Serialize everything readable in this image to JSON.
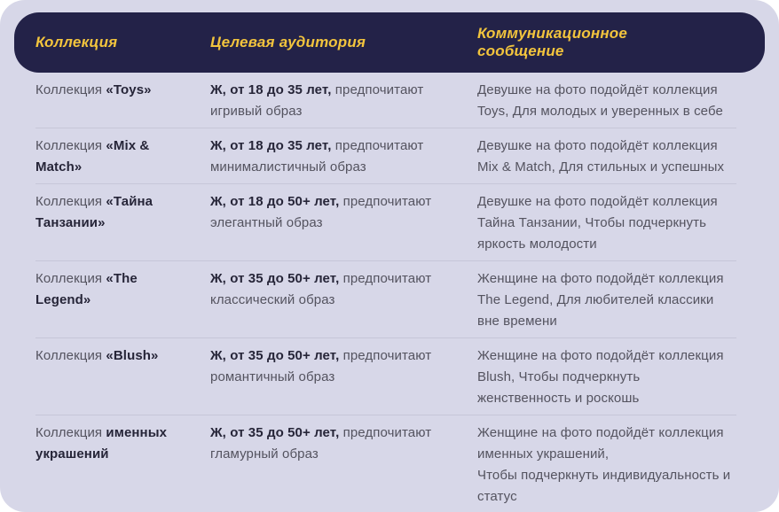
{
  "colors": {
    "card_bg": "#D7D7E8",
    "header_bg": "#232248",
    "header_text": "#F2C43D",
    "divider": "#C6C6D8",
    "text_regular": "#54535F",
    "text_bold": "#262538"
  },
  "table": {
    "headers": [
      {
        "id": "collection",
        "label": "Коллекция"
      },
      {
        "id": "audience",
        "label": "Целевая аудитория"
      },
      {
        "id": "message",
        "label": "Коммуникационное сообщение"
      }
    ],
    "rows": [
      {
        "collection": [
          {
            "text": "Коллекция ",
            "bold": false
          },
          {
            "text": "«Toys»",
            "bold": true
          }
        ],
        "audience": [
          {
            "text": "Ж, от 18 до 35 лет,",
            "bold": true
          },
          {
            "text": " предпочитают игривый образ",
            "bold": false
          }
        ],
        "message": [
          {
            "text": "Девушке на фото подойдёт коллекция Toys, Для молодых и уверенных в себе",
            "bold": false
          }
        ]
      },
      {
        "collection": [
          {
            "text": "Коллекция ",
            "bold": false
          },
          {
            "text": "«Mix & Match»",
            "bold": true
          }
        ],
        "audience": [
          {
            "text": "Ж, от 18 до 35 лет,",
            "bold": true
          },
          {
            "text": " предпочитают минималистичный образ",
            "bold": false
          }
        ],
        "message": [
          {
            "text": "Девушке на фото подойдёт коллекция Mix & Match, Для стильных и успешных",
            "bold": false
          }
        ]
      },
      {
        "collection": [
          {
            "text": "Коллекция ",
            "bold": false
          },
          {
            "text": "«Тайна Танзании»",
            "bold": true
          }
        ],
        "audience": [
          {
            "text": "Ж, от 18 до 50+ лет,",
            "bold": true
          },
          {
            "text": " предпочитают элегантный образ",
            "bold": false
          }
        ],
        "message": [
          {
            "text": "Девушке на фото подойдёт коллекция Тайна Танзании, Чтобы подчеркнуть яркость молодости",
            "bold": false
          }
        ]
      },
      {
        "collection": [
          {
            "text": "Коллекция ",
            "bold": false
          },
          {
            "text": "«The Legend»",
            "bold": true
          }
        ],
        "audience": [
          {
            "text": "Ж, от 35 до 50+ лет,",
            "bold": true
          },
          {
            "text": " предпочитают классический образ",
            "bold": false
          }
        ],
        "message": [
          {
            "text": "Женщине на фото подойдёт коллекция The Legend, Для любителей классики вне времени",
            "bold": false
          }
        ]
      },
      {
        "collection": [
          {
            "text": "Коллекция ",
            "bold": false
          },
          {
            "text": "«Blush»",
            "bold": true
          }
        ],
        "audience": [
          {
            "text": "Ж, от 35 до 50+ лет,",
            "bold": true
          },
          {
            "text": " предпочитают романтичный образ",
            "bold": false
          }
        ],
        "message": [
          {
            "text": "Женщине на фото подойдёт коллекция Blush, Чтобы подчеркнуть женственность и роскошь",
            "bold": false
          }
        ]
      },
      {
        "collection": [
          {
            "text": "Коллекция ",
            "bold": false
          },
          {
            "text": "именных украшений",
            "bold": true
          }
        ],
        "audience": [
          {
            "text": "Ж, от 35 до 50+ лет,",
            "bold": true
          },
          {
            "text": " предпочитают гламурный образ",
            "bold": false
          }
        ],
        "message": [
          {
            "text": "Женщине на фото подойдёт коллекция именных украшений,",
            "bold": false
          },
          {
            "text": "Чтобы подчеркнуть индивидуальность и статус",
            "bold": false,
            "br_before": true
          }
        ]
      }
    ]
  }
}
